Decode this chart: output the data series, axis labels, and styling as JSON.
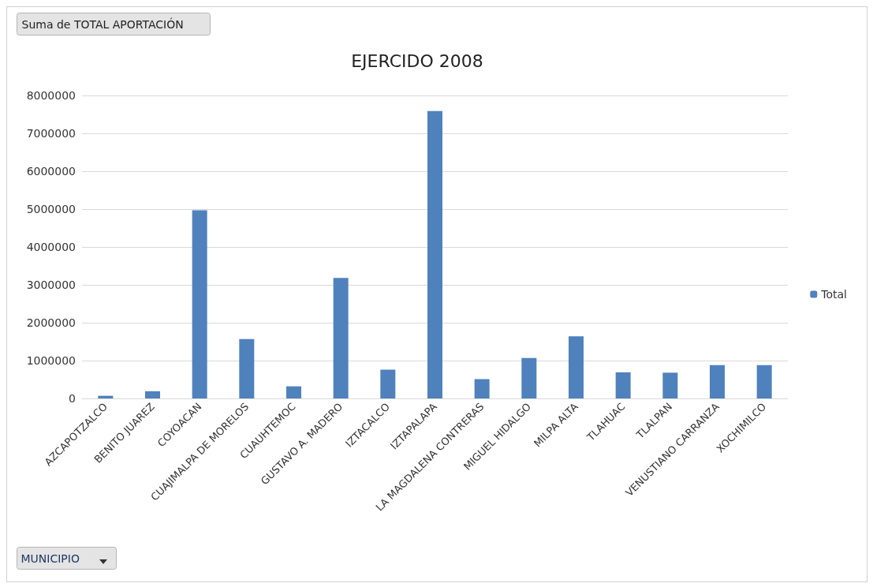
{
  "chart_data": {
    "type": "bar",
    "title": "EJERCIDO 2008",
    "categories": [
      "AZCAPOTZALCO",
      "BENITO JUAREZ",
      "COYOACAN",
      "CUAJIMALPA DE MORELOS",
      "CUAUHTEMOC",
      "GUSTAVO A. MADERO",
      "IZTACALCO",
      "IZTAPALAPA",
      "LA MAGDALENA CONTRERAS",
      "MIGUEL HIDALGO",
      "MILPA ALTA",
      "TLAHUAC",
      "TLALPAN",
      "VENUSTIANO CARRANZA",
      "XOCHIMILCO"
    ],
    "series": [
      {
        "name": "Total",
        "color": "#4f81bd",
        "values": [
          70000,
          190000,
          4970000,
          1570000,
          320000,
          3180000,
          760000,
          7590000,
          510000,
          1070000,
          1640000,
          690000,
          680000,
          880000,
          880000
        ]
      }
    ],
    "ylim": [
      0,
      8000000
    ],
    "yticks": [
      0,
      1000000,
      2000000,
      3000000,
      4000000,
      5000000,
      6000000,
      7000000,
      8000000
    ],
    "grid": "y",
    "legend": "right",
    "annotations": [
      "Suma de TOTAL APORTACIÓN",
      "MUNICIPIO"
    ]
  }
}
